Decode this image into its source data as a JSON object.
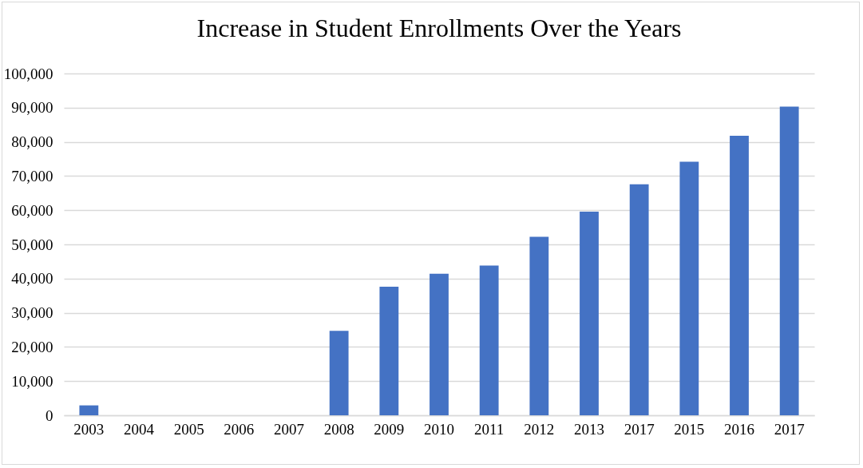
{
  "chart_data": {
    "type": "bar",
    "title": "Increase in Student Enrollments Over the Years",
    "categories": [
      "2003",
      "2004",
      "2005",
      "2006",
      "2007",
      "2008",
      "2009",
      "2010",
      "2011",
      "2012",
      "2013",
      "2017",
      "2015",
      "2016",
      "2017"
    ],
    "values": [
      2900,
      null,
      null,
      null,
      null,
      24700,
      37600,
      41400,
      43800,
      52200,
      59600,
      67600,
      74200,
      81800,
      90300
    ],
    "color": "#4472c4",
    "ylim": [
      0,
      100000
    ],
    "yticks": [
      {
        "value": 0,
        "label": "0"
      },
      {
        "value": 10000,
        "label": "10,000"
      },
      {
        "value": 20000,
        "label": "20,000"
      },
      {
        "value": 30000,
        "label": "30,000"
      },
      {
        "value": 40000,
        "label": "40,000"
      },
      {
        "value": 50000,
        "label": "50,000"
      },
      {
        "value": 60000,
        "label": "60,000"
      },
      {
        "value": 70000,
        "label": "70,000"
      },
      {
        "value": 80000,
        "label": "80,000"
      },
      {
        "value": 90000,
        "label": "90,000"
      },
      {
        "value": 100000,
        "label": "100,000"
      }
    ],
    "grid": "y"
  }
}
